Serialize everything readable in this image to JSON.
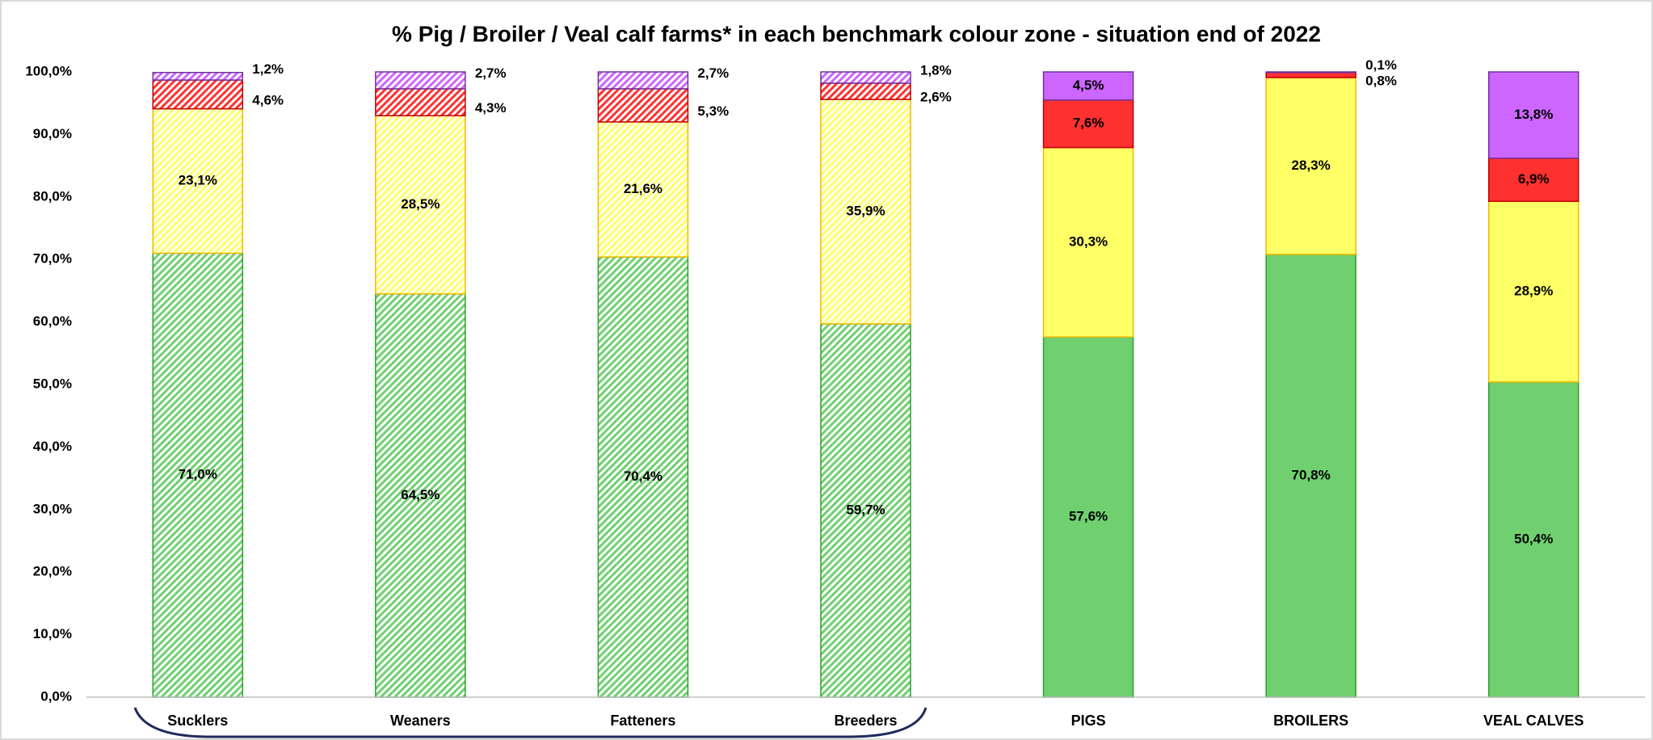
{
  "chart_data": {
    "type": "stacked_bar",
    "title": "% Pig / Broiler / Veal calf farms* in each benchmark colour zone - situation end of 2022",
    "categories": [
      "Sucklers",
      "Weaners",
      "Fatteners",
      "Breeders",
      "PIGS",
      "BROILERS",
      "VEAL CALVES"
    ],
    "hatched": [
      true,
      true,
      true,
      true,
      false,
      false,
      false
    ],
    "series": [
      {
        "color": "#70d070",
        "edge_color": "#2ca02c",
        "values": [
          71.0,
          64.5,
          70.4,
          59.7,
          57.6,
          70.8,
          50.4
        ],
        "value_labels": [
          "71,0%",
          "64,5%",
          "70,4%",
          "59,7%",
          "57,6%",
          "70,8%",
          "50,4%"
        ]
      },
      {
        "color": "#ffff66",
        "edge_color": "#f0b800",
        "values": [
          23.1,
          28.5,
          21.6,
          35.9,
          30.3,
          28.3,
          28.9
        ],
        "value_labels": [
          "23,1%",
          "28,5%",
          "21,6%",
          "35,9%",
          "30,3%",
          "28,3%",
          "28,9%"
        ]
      },
      {
        "color": "#ff3030",
        "edge_color": "#c00000",
        "values": [
          4.6,
          4.3,
          5.3,
          2.6,
          7.6,
          0.8,
          6.9
        ],
        "value_labels": [
          "4,6%",
          "4,3%",
          "5,3%",
          "2,6%",
          "7,6%",
          "0,8%",
          "6,9%"
        ]
      },
      {
        "color": "#cc66ff",
        "edge_color": "#7030a0",
        "values": [
          1.2,
          2.7,
          2.7,
          1.8,
          4.5,
          0.1,
          13.8
        ],
        "value_labels": [
          "1,2%",
          "2,7%",
          "2,7%",
          "1,8%",
          "4,5%",
          "0,1%",
          "13,8%"
        ]
      }
    ],
    "ylim": [
      0,
      100
    ],
    "yticks": [
      {
        "value": 0,
        "label": "0,0%"
      },
      {
        "value": 10,
        "label": "10,0%"
      },
      {
        "value": 20,
        "label": "20,0%"
      },
      {
        "value": 30,
        "label": "30,0%"
      },
      {
        "value": 40,
        "label": "40,0%"
      },
      {
        "value": 50,
        "label": "50,0%"
      },
      {
        "value": 60,
        "label": "60,0%"
      },
      {
        "value": 70,
        "label": "70,0%"
      },
      {
        "value": 80,
        "label": "80,0%"
      },
      {
        "value": 90,
        "label": "90,0%"
      },
      {
        "value": 100,
        "label": "100,0%"
      }
    ],
    "grid": false
  }
}
